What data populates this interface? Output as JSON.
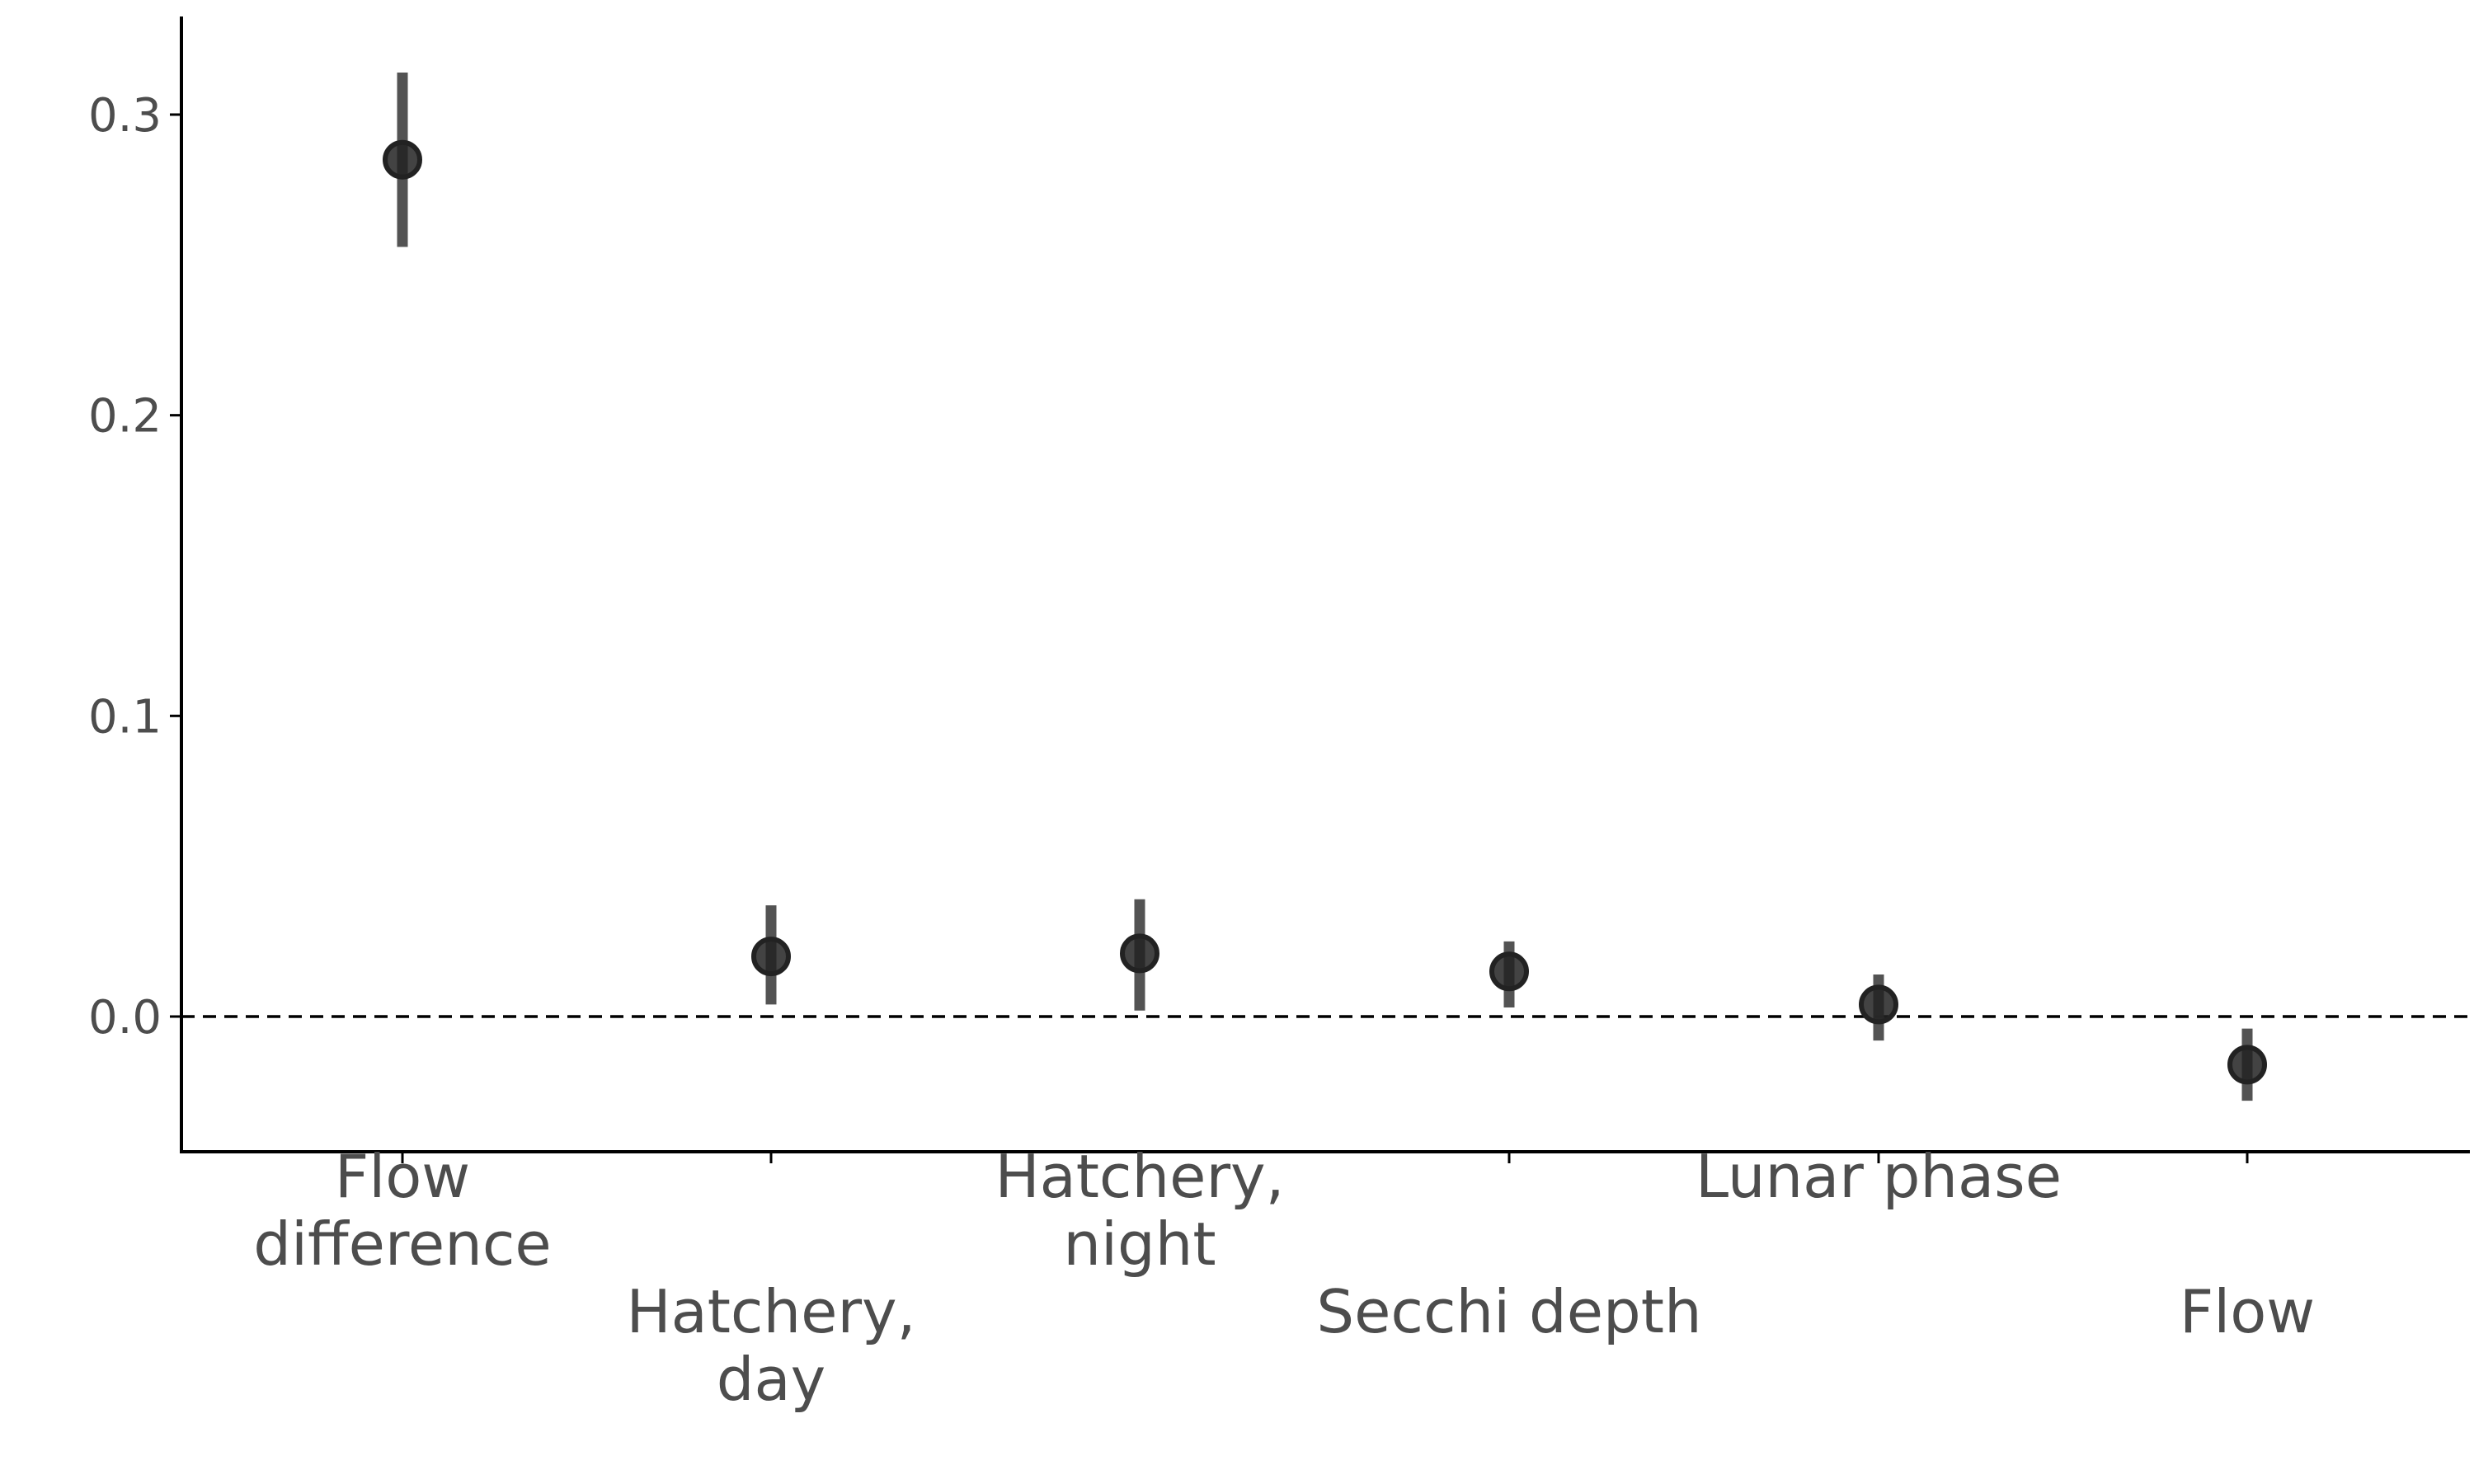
{
  "chart_data": {
    "type": "scatter",
    "categories": [
      "Flow\ndifference",
      "Hatchery,\nday",
      "Hatchery,\nnight",
      "Secchi depth",
      "Lunar phase",
      "Flow"
    ],
    "series": [
      {
        "values": [
          0.285,
          0.02,
          0.021,
          0.015,
          0.004,
          -0.016
        ],
        "lower": [
          0.256,
          0.004,
          0.002,
          0.003,
          -0.008,
          -0.028
        ],
        "upper": [
          0.314,
          0.037,
          0.039,
          0.025,
          0.014,
          -0.004
        ]
      }
    ],
    "title": "",
    "xlabel": "",
    "ylabel": "",
    "ylim": [
      -0.045,
      0.33
    ],
    "yticks": [
      "0.0",
      "0.1",
      "0.2",
      "0.3"
    ],
    "reference_line": 0.0,
    "grid": false,
    "legend": "none",
    "colors": {
      "point": "#222222",
      "errorbar": "#4a4a4a",
      "axis": "#000000",
      "text": "#4d4d4d"
    }
  }
}
